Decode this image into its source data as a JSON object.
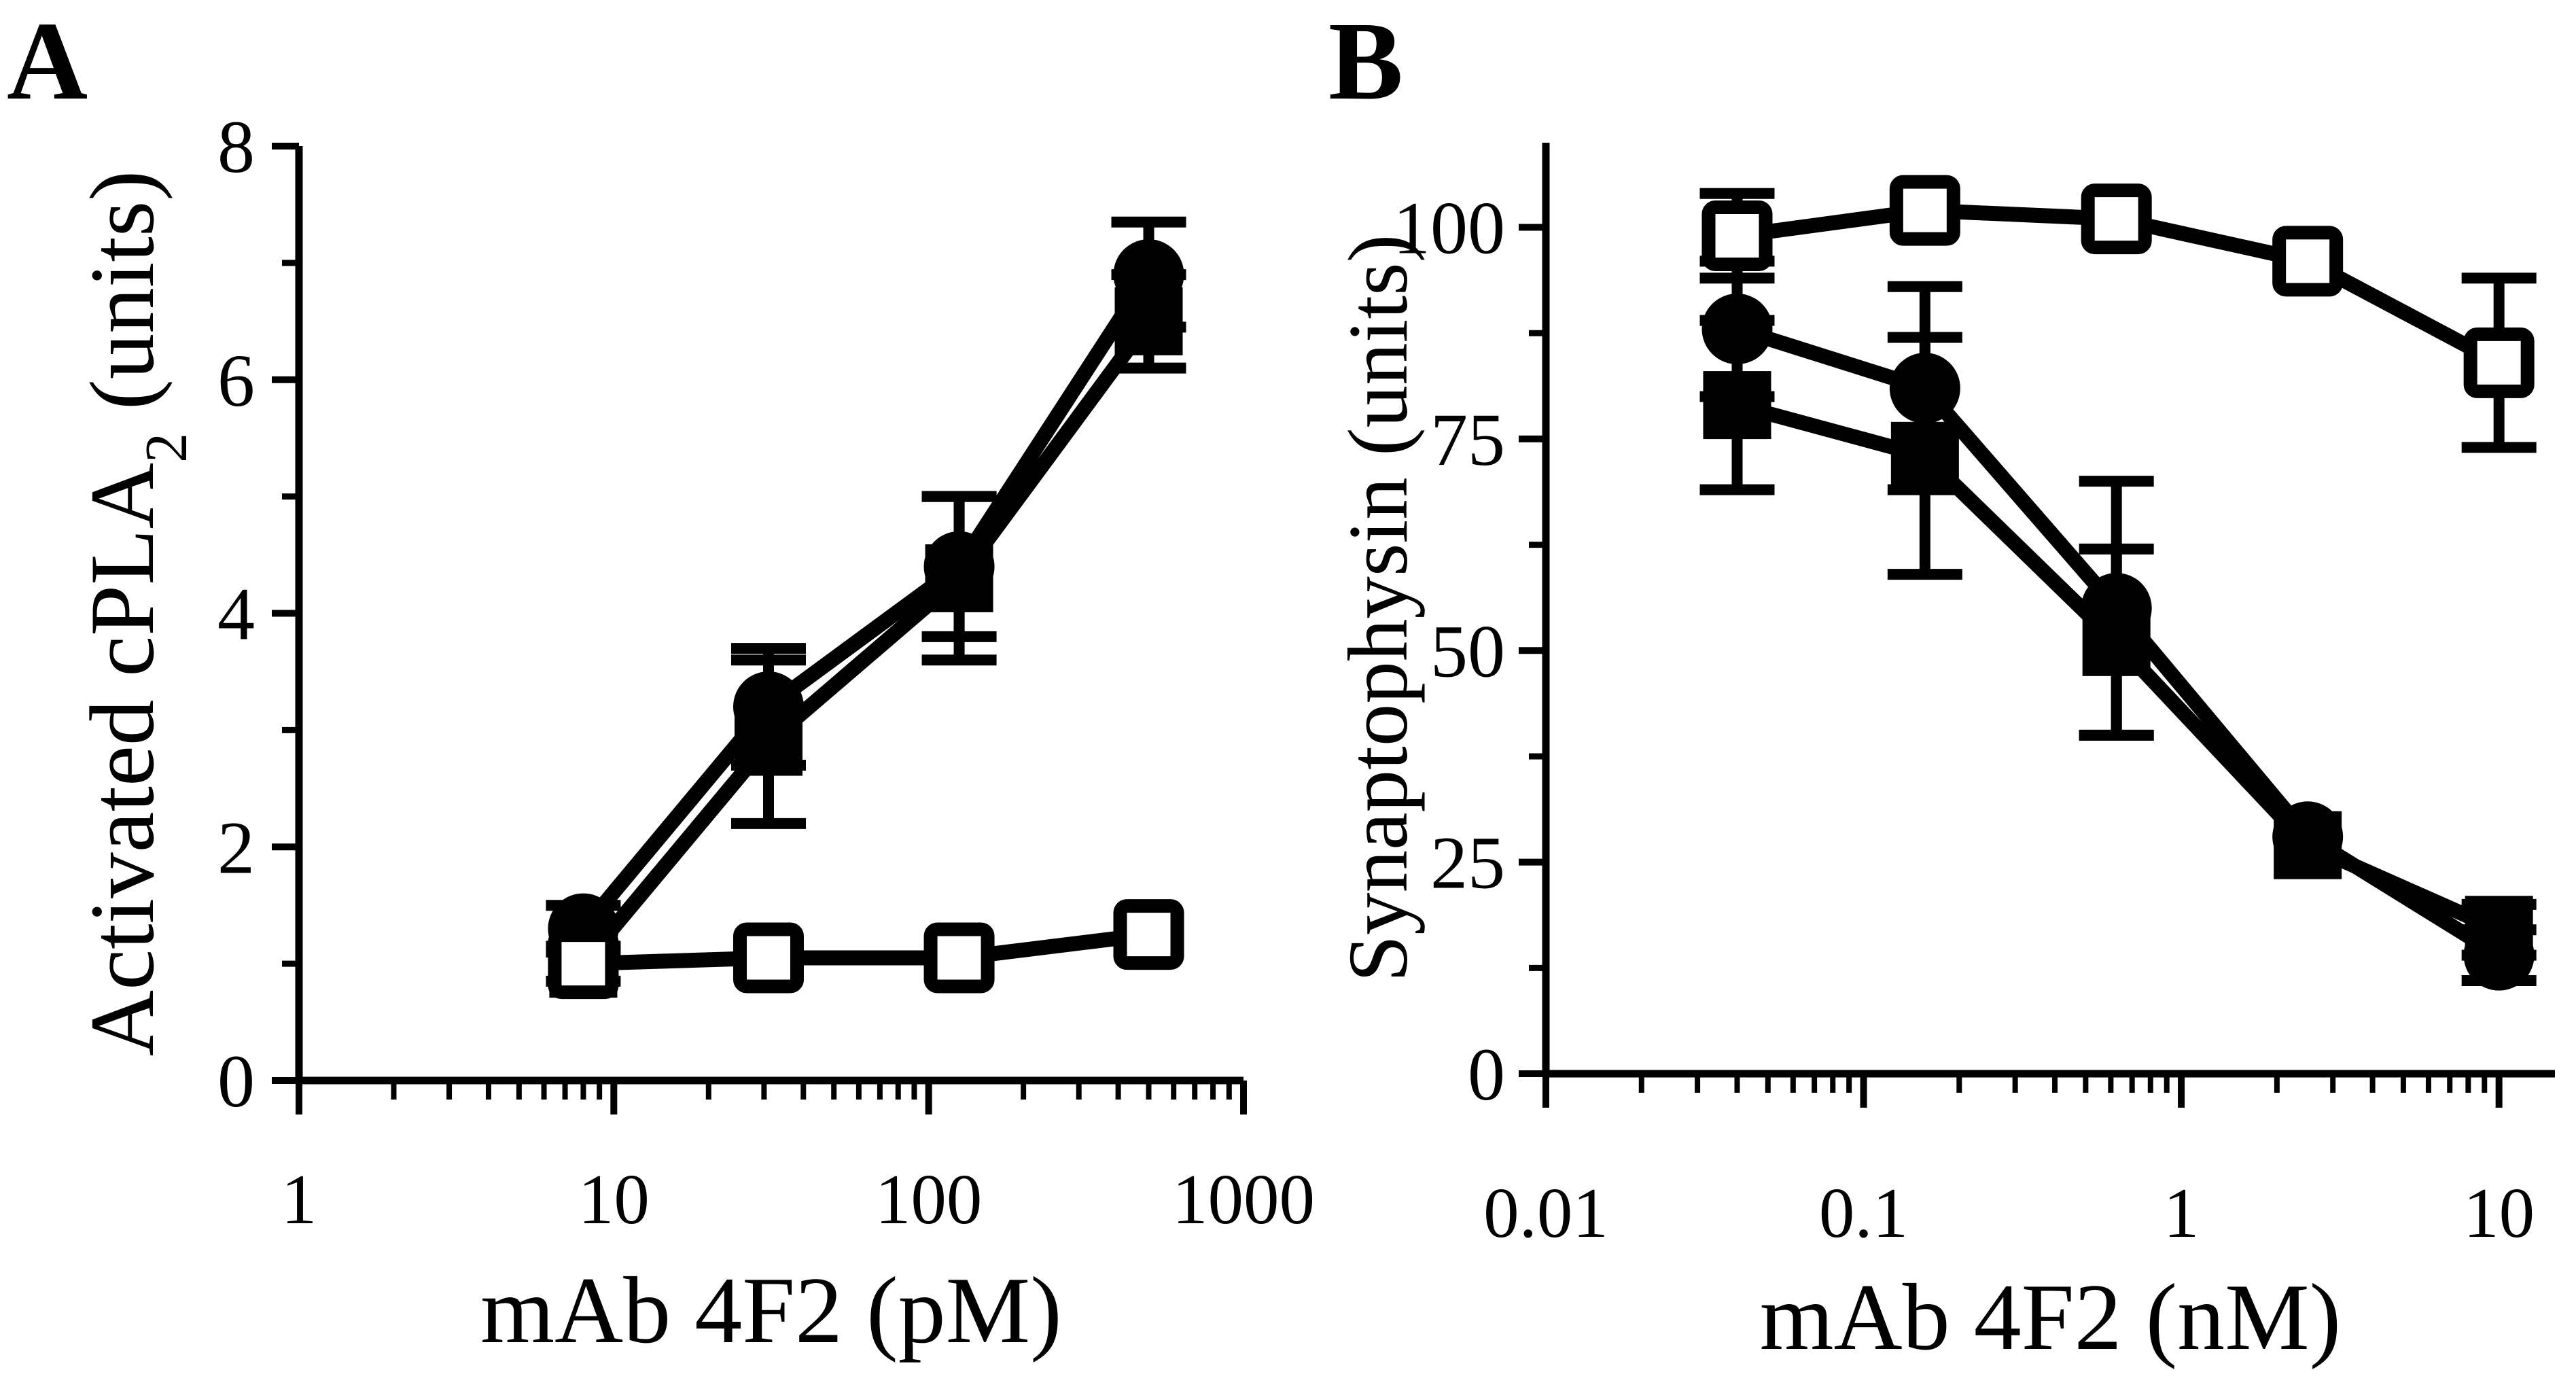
{
  "chart_data": [
    {
      "panel_label": "A",
      "type": "line",
      "xscale": "log",
      "xlim": [
        1,
        1000
      ],
      "ylim": [
        0,
        8
      ],
      "xticks": [
        1,
        10,
        100,
        1000
      ],
      "xtick_labels": [
        "1",
        "10",
        "100",
        "1000"
      ],
      "yticks": [
        0,
        2,
        4,
        6,
        8
      ],
      "ytick_labels": [
        "0",
        "2",
        "4",
        "6",
        "8"
      ],
      "xlabel": "mAb 4F2 (pM)",
      "ylabel_main": "Activated cPLA",
      "ylabel_sub": "2",
      "ylabel_tail": " (units)",
      "series": [
        {
          "name": "circle-filled",
          "marker": "circle-filled",
          "x": [
            8,
            31,
            125,
            500
          ],
          "y": [
            1.3,
            3.2,
            4.4,
            6.9
          ],
          "err": [
            0.2,
            0.5,
            0.6,
            0.45
          ]
        },
        {
          "name": "square-filled",
          "marker": "square-filled",
          "x": [
            8,
            31,
            125,
            500
          ],
          "y": [
            1.0,
            2.9,
            4.3,
            6.5
          ],
          "err": [
            0.15,
            0.7,
            0.7,
            0.4
          ]
        },
        {
          "name": "square-open",
          "marker": "square-open",
          "x": [
            8,
            31,
            125,
            500
          ],
          "y": [
            1.0,
            1.05,
            1.05,
            1.25
          ],
          "err": [
            0,
            0,
            0,
            0
          ]
        }
      ]
    },
    {
      "panel_label": "B",
      "type": "line",
      "xscale": "log",
      "xlim": [
        0.01,
        15
      ],
      "ylim": [
        0,
        110
      ],
      "xticks": [
        0.01,
        0.1,
        1,
        10
      ],
      "xtick_labels": [
        "0.01",
        "0.1",
        "1",
        "10"
      ],
      "yticks": [
        0,
        25,
        50,
        75,
        100
      ],
      "ytick_labels": [
        "0",
        "25",
        "50",
        "75",
        "100"
      ],
      "xlabel": "mAb 4F2 (nM)",
      "ylabel_main": "Synaptophysin (units)",
      "series": [
        {
          "name": "square-open",
          "marker": "square-open",
          "x": [
            0.04,
            0.156,
            0.625,
            2.5,
            10
          ],
          "y": [
            99,
            102,
            101,
            96,
            84
          ],
          "err": [
            5,
            0,
            0,
            0,
            10
          ]
        },
        {
          "name": "circle-filled",
          "marker": "circle-filled",
          "x": [
            0.04,
            0.156,
            0.625,
            2.5,
            10
          ],
          "y": [
            88,
            81,
            55,
            28,
            14
          ],
          "err": [
            8,
            12,
            15,
            0,
            3
          ]
        },
        {
          "name": "square-filled",
          "marker": "square-filled",
          "x": [
            0.04,
            0.156,
            0.625,
            2.5,
            10
          ],
          "y": [
            79,
            73,
            51,
            27,
            17
          ],
          "err": [
            10,
            14,
            11,
            0,
            3
          ]
        }
      ]
    }
  ]
}
